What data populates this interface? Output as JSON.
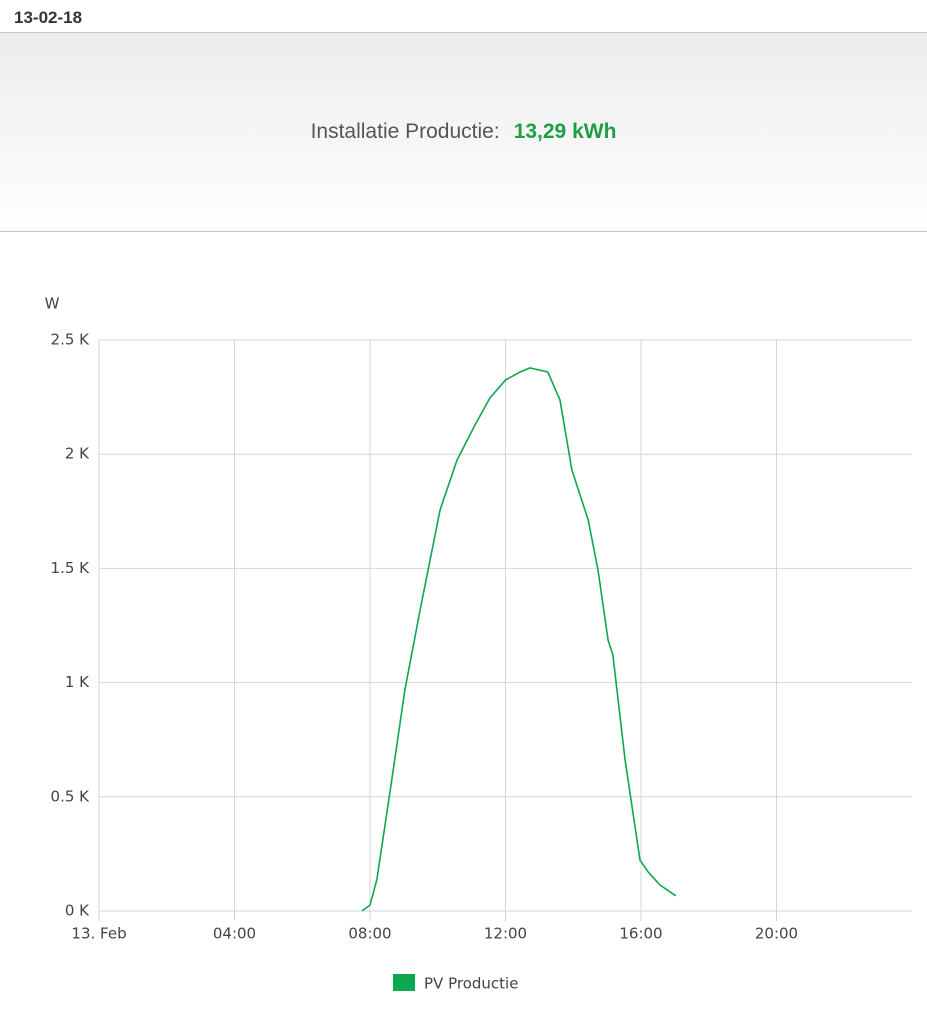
{
  "header": {
    "date": "13-02-18",
    "label": "Installatie Productie:",
    "value": "13,29 kWh"
  },
  "chart_data": {
    "type": "line",
    "y_label": "W",
    "x": [
      7.76,
      8.0,
      8.2,
      8.6,
      9.03,
      9.48,
      10.07,
      10.57,
      11.1,
      11.54,
      12.0,
      12.43,
      12.72,
      13.25,
      13.61,
      13.96,
      14.44,
      14.73,
      15.03,
      15.17,
      15.53,
      15.97,
      16.21,
      16.56,
      17.03
    ],
    "series": [
      {
        "name": "PV Productie",
        "color": "#0aa84f",
        "values": [
          0,
          26,
          136,
          530,
          968,
          1318,
          1756,
          1975,
          2128,
          2246,
          2325,
          2360,
          2378,
          2360,
          2237,
          1931,
          1712,
          1493,
          1186,
          1121,
          661,
          223,
          171,
          114,
          66
        ]
      }
    ],
    "xlim": [
      0,
      24
    ],
    "xticks": [
      {
        "value": 0,
        "label": "13. Feb"
      },
      {
        "value": 4,
        "label": "04:00"
      },
      {
        "value": 8,
        "label": "08:00"
      },
      {
        "value": 12,
        "label": "12:00"
      },
      {
        "value": 16,
        "label": "16:00"
      },
      {
        "value": 20,
        "label": "20:00"
      }
    ],
    "ylim": [
      0,
      2500
    ],
    "yticks": [
      {
        "value": 0,
        "label": "0 K"
      },
      {
        "value": 500,
        "label": "0.5 K"
      },
      {
        "value": 1000,
        "label": "1 K"
      },
      {
        "value": 1500,
        "label": "1.5 K"
      },
      {
        "value": 2000,
        "label": "2 K"
      },
      {
        "value": 2500,
        "label": "2.5 K"
      }
    ],
    "grid": true
  }
}
